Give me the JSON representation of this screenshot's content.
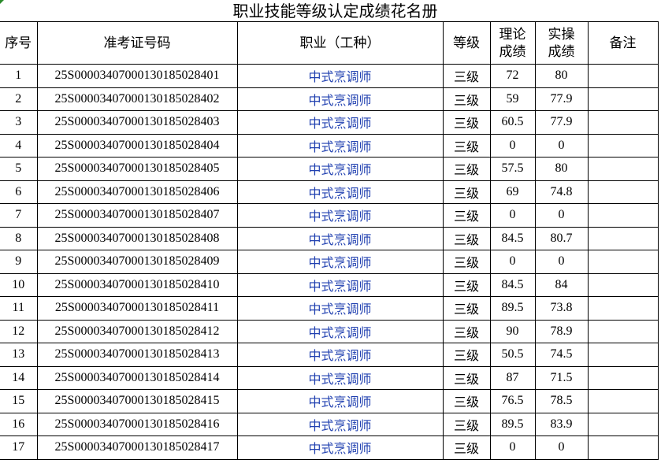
{
  "title": "职业技能等级认定成绩花名册",
  "headers": {
    "no": "序号",
    "exam_id": "准考证号码",
    "occupation": "职业（工种）",
    "level": "等级",
    "theory": "理论成绩",
    "practice": "实操成绩",
    "remark": "备注"
  },
  "colors": {
    "occupation_text": "#2040b0"
  },
  "rows": [
    {
      "no": "1",
      "id": "25S000034070001301850284O1",
      "occ": "中式烹调师",
      "level": "三级",
      "theory": "72",
      "practice": "80"
    },
    {
      "no": "2",
      "id": "25S0000340700013018502840 2",
      "occ": "中式烹调师",
      "level": "三级",
      "theory": "59",
      "practice": "77.9"
    }
  ]
}
